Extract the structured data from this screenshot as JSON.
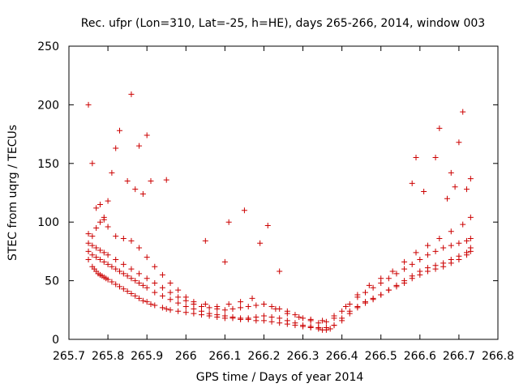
{
  "chart_data": {
    "type": "scatter",
    "title": "Rec. ufpr (Lon=310, Lat=-25, h=HE), days 265-266, 2014, window 003",
    "xlabel": "GPS time / Days of year 2014",
    "ylabel": "STEC from uqrg / TECUs",
    "xlim": [
      265.7,
      266.8
    ],
    "ylim": [
      0,
      250
    ],
    "xticks": [
      "265.7",
      "265.8",
      "265.9",
      "266",
      "266.1",
      "266.2",
      "266.3",
      "266.4",
      "266.5",
      "266.6",
      "266.7",
      "266.8"
    ],
    "yticks": [
      "0",
      "50",
      "100",
      "150",
      "200",
      "250"
    ],
    "grid": false,
    "legend": "none",
    "marker": "+",
    "color": "#cc0000",
    "series": [
      {
        "x": [
          265.75,
          265.76,
          265.765,
          265.77,
          265.775,
          265.78,
          265.785,
          265.79,
          265.795,
          265.8,
          265.81,
          265.82,
          265.83,
          265.84,
          265.85,
          265.86,
          265.87,
          265.88,
          265.89,
          265.9,
          265.91,
          265.92,
          265.94,
          265.95,
          265.96,
          265.98,
          266.0,
          266.02,
          266.04,
          266.06,
          266.08,
          266.1,
          266.12,
          266.14,
          266.16,
          266.18,
          266.2,
          266.22,
          266.24,
          266.26,
          266.28,
          266.3,
          266.32,
          266.34,
          266.35,
          266.36,
          266.37,
          266.38,
          266.4,
          266.42,
          266.44,
          266.46,
          266.48,
          266.5,
          266.52,
          266.54,
          266.56,
          266.58,
          266.6,
          266.62,
          266.64,
          266.66,
          266.68,
          266.7,
          266.72,
          266.73
        ],
        "y": [
          68,
          62,
          60,
          58,
          56,
          55,
          54,
          53,
          52,
          51,
          49,
          47,
          45,
          43,
          41,
          39,
          37,
          35,
          33,
          32,
          30,
          29,
          27,
          26,
          25,
          24,
          23,
          22,
          21,
          20,
          19,
          18,
          18,
          17,
          17,
          16,
          16,
          15,
          14,
          13,
          12,
          11,
          10,
          9,
          8,
          8,
          9,
          12,
          18,
          24,
          28,
          32,
          35,
          38,
          42,
          45,
          48,
          52,
          55,
          58,
          60,
          62,
          65,
          68,
          72,
          75
        ]
      },
      {
        "x": [
          265.75,
          265.76,
          265.77,
          265.78,
          265.79,
          265.8,
          265.81,
          265.82,
          265.83,
          265.84,
          265.85,
          265.86,
          265.87,
          265.88,
          265.89,
          265.9,
          265.92,
          265.94,
          265.96,
          265.98,
          266.0,
          266.02,
          266.04,
          266.06,
          266.08,
          266.1,
          266.12,
          266.14,
          266.16,
          266.18,
          266.2,
          266.22,
          266.24,
          266.26,
          266.28,
          266.3,
          266.32,
          266.34,
          266.36,
          266.38,
          266.4,
          266.42,
          266.44,
          266.46,
          266.48,
          266.5,
          266.52,
          266.54,
          266.56,
          266.58,
          266.6,
          266.62,
          266.64,
          266.66,
          266.68,
          266.7,
          266.72,
          266.73
        ],
        "y": [
          75,
          72,
          70,
          68,
          66,
          64,
          62,
          60,
          58,
          56,
          54,
          52,
          50,
          48,
          46,
          44,
          40,
          37,
          34,
          31,
          28,
          26,
          24,
          22,
          21,
          20,
          19,
          18,
          18,
          19,
          20,
          19,
          18,
          16,
          14,
          12,
          11,
          10,
          10,
          12,
          16,
          22,
          27,
          31,
          34,
          38,
          42,
          46,
          50,
          54,
          58,
          61,
          63,
          65,
          68,
          71,
          74,
          78
        ]
      },
      {
        "x": [
          265.75,
          265.76,
          265.77,
          265.78,
          265.79,
          265.8,
          265.82,
          265.84,
          265.86,
          265.88,
          265.9,
          265.92,
          265.94,
          265.96,
          265.98,
          266.0,
          266.02,
          266.04,
          266.06,
          266.08,
          266.1,
          266.12,
          266.14,
          266.16,
          266.18,
          266.2,
          266.22,
          266.24,
          266.26,
          266.28,
          266.3,
          266.32,
          266.34,
          266.36,
          266.38,
          266.4,
          266.42,
          266.44,
          266.46,
          266.48,
          266.5,
          266.52,
          266.54,
          266.56,
          266.58,
          266.6,
          266.62,
          266.64,
          266.66,
          266.68,
          266.7,
          266.72,
          266.73
        ],
        "y": [
          82,
          80,
          78,
          76,
          74,
          72,
          68,
          64,
          60,
          56,
          52,
          48,
          44,
          40,
          36,
          33,
          30,
          28,
          27,
          26,
          25,
          26,
          27,
          28,
          29,
          30,
          28,
          26,
          24,
          21,
          18,
          16,
          14,
          15,
          18,
          24,
          30,
          36,
          40,
          44,
          48,
          52,
          56,
          60,
          64,
          68,
          72,
          75,
          78,
          80,
          82,
          84,
          86
        ]
      },
      {
        "x": [
          265.75,
          265.76,
          265.77,
          265.78,
          265.79,
          265.8,
          265.82,
          265.84,
          265.86,
          265.88,
          265.9,
          265.92,
          265.94,
          265.96,
          265.98,
          266.0,
          266.02,
          266.05,
          266.08,
          266.11,
          266.14,
          266.17,
          266.2,
          266.23,
          266.26,
          266.29,
          266.32,
          266.35,
          266.38,
          266.41,
          266.44,
          266.47,
          266.5,
          266.53,
          266.56,
          266.59,
          266.62,
          266.65,
          266.68,
          266.71,
          266.73
        ],
        "y": [
          90,
          88,
          95,
          100,
          104,
          96,
          88,
          86,
          84,
          78,
          70,
          62,
          55,
          48,
          42,
          36,
          32,
          30,
          28,
          30,
          32,
          35,
          30,
          26,
          22,
          19,
          17,
          16,
          20,
          28,
          38,
          46,
          52,
          58,
          66,
          74,
          80,
          86,
          92,
          98,
          104
        ]
      },
      {
        "x": [
          265.75,
          265.76,
          265.77,
          265.78,
          265.79,
          265.8,
          265.81,
          265.82,
          265.83,
          265.85,
          265.86,
          265.87,
          265.88,
          265.89,
          265.9,
          265.91,
          265.95,
          266.05,
          266.1,
          266.11,
          266.15,
          266.19,
          266.21,
          266.24,
          266.58,
          266.59,
          266.61,
          266.64,
          266.65,
          266.67,
          266.68,
          266.69,
          266.7,
          266.71,
          266.72,
          266.73
        ],
        "y": [
          200,
          150,
          112,
          115,
          102,
          118,
          142,
          163,
          178,
          135,
          209,
          128,
          165,
          124,
          174,
          135,
          136,
          84,
          66,
          100,
          110,
          82,
          97,
          58,
          133,
          155,
          126,
          155,
          180,
          120,
          142,
          130,
          168,
          194,
          128,
          137
        ]
      }
    ]
  }
}
